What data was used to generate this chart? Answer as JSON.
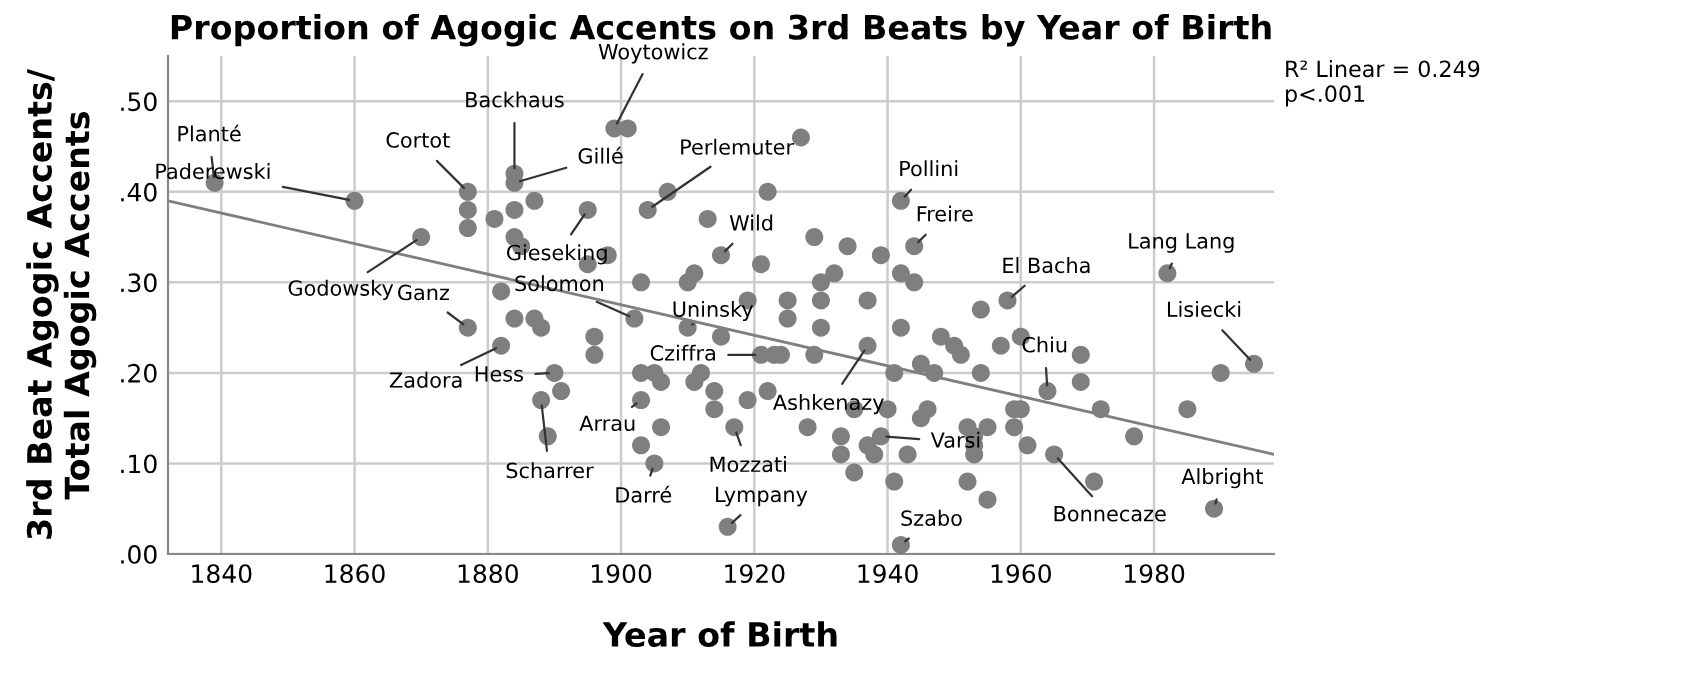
{
  "chart_data": {
    "type": "scatter",
    "title": "Proportion of Agogic Accents on 3rd Beats by Year of Birth",
    "xlabel": "Year of Birth",
    "ylabel": "3rd Beat Agogic Accents/\nTotal Agogic Accents",
    "xlim": [
      1832,
      1998
    ],
    "xticks": [
      1840,
      1860,
      1880,
      1900,
      1920,
      1940,
      1960,
      1980
    ],
    "ylim": [
      0,
      0.55
    ],
    "yticks": [
      {
        "value": 0,
        "label": ".00"
      },
      {
        "value": 0.1,
        "label": ".10"
      },
      {
        "value": 0.2,
        "label": ".20"
      },
      {
        "value": 0.3,
        "label": ".30"
      },
      {
        "value": 0.4,
        "label": ".40"
      },
      {
        "value": 0.5,
        "label": ".50"
      }
    ],
    "grid": true,
    "series": [
      {
        "marker": "circle",
        "color": "#7f7f7f",
        "x": [
          1839,
          1860,
          1870,
          1877,
          1877,
          1877,
          1877,
          1881,
          1882,
          1882,
          1884,
          1884,
          1887,
          1884,
          1884,
          1885,
          1895,
          1895,
          1898,
          1899,
          1901,
          1904,
          1907,
          1922,
          1913,
          1915,
          1921,
          1903,
          1910,
          1911,
          1919,
          1902,
          1884,
          1887,
          1888,
          1896,
          1896,
          1910,
          1915,
          1921,
          1923,
          1890,
          1891,
          1888,
          1889,
          1903,
          1905,
          1906,
          1903,
          1912,
          1911,
          1914,
          1919,
          1922,
          1914,
          1917,
          1906,
          1903,
          1905,
          1916,
          1927,
          1942,
          1929,
          1934,
          1939,
          1944,
          1932,
          1930,
          1942,
          1944,
          1925,
          1925,
          1930,
          1937,
          1930,
          1942,
          1958,
          1954,
          1957,
          1960,
          1948,
          1950,
          1951,
          1937,
          1924,
          1929,
          1945,
          1947,
          1941,
          1954,
          1935,
          1940,
          1946,
          1928,
          1933,
          1933,
          1945,
          1939,
          1937,
          1938,
          1943,
          1935,
          1941,
          1952,
          1953,
          1953,
          1953,
          1955,
          1959,
          1959,
          1960,
          1961,
          1952,
          1955,
          1942,
          1964,
          1969,
          1969,
          1972,
          1977,
          1965,
          1971,
          1982,
          1995,
          1990,
          1985,
          1989
        ],
        "values": [
          0.41,
          0.39,
          0.35,
          0.4,
          0.38,
          0.36,
          0.25,
          0.37,
          0.29,
          0.23,
          0.42,
          0.41,
          0.39,
          0.38,
          0.35,
          0.34,
          0.38,
          0.32,
          0.33,
          0.47,
          0.47,
          0.38,
          0.4,
          0.4,
          0.37,
          0.33,
          0.32,
          0.3,
          0.3,
          0.31,
          0.28,
          0.26,
          0.26,
          0.26,
          0.25,
          0.24,
          0.22,
          0.25,
          0.24,
          0.22,
          0.22,
          0.2,
          0.18,
          0.17,
          0.13,
          0.2,
          0.2,
          0.19,
          0.17,
          0.2,
          0.19,
          0.18,
          0.17,
          0.18,
          0.16,
          0.14,
          0.14,
          0.12,
          0.1,
          0.03,
          0.46,
          0.39,
          0.35,
          0.34,
          0.33,
          0.34,
          0.31,
          0.3,
          0.31,
          0.3,
          0.28,
          0.26,
          0.28,
          0.28,
          0.25,
          0.25,
          0.28,
          0.27,
          0.23,
          0.24,
          0.24,
          0.23,
          0.22,
          0.23,
          0.22,
          0.22,
          0.21,
          0.2,
          0.2,
          0.2,
          0.16,
          0.16,
          0.16,
          0.14,
          0.13,
          0.11,
          0.15,
          0.13,
          0.12,
          0.11,
          0.11,
          0.09,
          0.08,
          0.14,
          0.13,
          0.12,
          0.11,
          0.14,
          0.14,
          0.16,
          0.16,
          0.12,
          0.08,
          0.06,
          0.01,
          0.18,
          0.22,
          0.19,
          0.16,
          0.13,
          0.11,
          0.08,
          0.31,
          0.21,
          0.2,
          0.16,
          0.05
        ]
      },
      {
        "type": "line",
        "color": "#7f7f7f",
        "x": [
          1832,
          1998
        ],
        "values": [
          0.39,
          0.11
        ]
      }
    ],
    "annotations": [
      {
        "text": "Planté",
        "x": 1839,
        "y": 0.41
      },
      {
        "text": "Paderewski",
        "x": 1860,
        "y": 0.39
      },
      {
        "text": "Cortot",
        "x": 1877,
        "y": 0.4
      },
      {
        "text": "Backhaus",
        "x": 1884,
        "y": 0.42
      },
      {
        "text": "Gillé",
        "x": 1884,
        "y": 0.41
      },
      {
        "text": "Woytowicz",
        "x": 1899,
        "y": 0.47
      },
      {
        "text": "Perlemuter",
        "x": 1904,
        "y": 0.38
      },
      {
        "text": "Godowsky",
        "x": 1870,
        "y": 0.35
      },
      {
        "text": "Gieseking",
        "x": 1895,
        "y": 0.38
      },
      {
        "text": "Wild",
        "x": 1915,
        "y": 0.33
      },
      {
        "text": "Pollini",
        "x": 1942,
        "y": 0.39
      },
      {
        "text": "Freire",
        "x": 1944,
        "y": 0.34
      },
      {
        "text": "El Bacha",
        "x": 1958,
        "y": 0.28
      },
      {
        "text": "Lang Lang",
        "x": 1982,
        "y": 0.31
      },
      {
        "text": "Lisiecki",
        "x": 1995,
        "y": 0.21
      },
      {
        "text": "Ganz",
        "x": 1877,
        "y": 0.25
      },
      {
        "text": "Solomon",
        "x": 1902,
        "y": 0.26
      },
      {
        "text": "Uninsky",
        "x": 1910,
        "y": 0.25
      },
      {
        "text": "Zadora",
        "x": 1882,
        "y": 0.23
      },
      {
        "text": "Hess",
        "x": 1890,
        "y": 0.2
      },
      {
        "text": "Cziffra",
        "x": 1921,
        "y": 0.22
      },
      {
        "text": "Chiu",
        "x": 1964,
        "y": 0.18
      },
      {
        "text": "Ashkenazy",
        "x": 1937,
        "y": 0.23
      },
      {
        "text": "Arrau",
        "x": 1903,
        "y": 0.17
      },
      {
        "text": "Scharrer",
        "x": 1888,
        "y": 0.17
      },
      {
        "text": "Mozzati",
        "x": 1917,
        "y": 0.14
      },
      {
        "text": "Varsi",
        "x": 1939,
        "y": 0.13
      },
      {
        "text": "Darré",
        "x": 1905,
        "y": 0.1
      },
      {
        "text": "Lympany",
        "x": 1916,
        "y": 0.03
      },
      {
        "text": "Szabo",
        "x": 1942,
        "y": 0.01
      },
      {
        "text": "Bonnecaze",
        "x": 1965,
        "y": 0.11
      },
      {
        "text": "Albright",
        "x": 1989,
        "y": 0.05
      },
      "R² Linear = 0.249\np<.001"
    ]
  }
}
